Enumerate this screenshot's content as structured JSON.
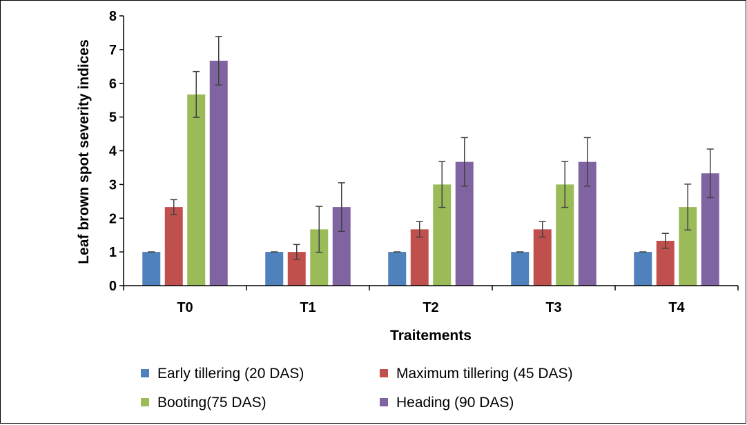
{
  "chart_data": {
    "type": "bar",
    "title": "",
    "xlabel": "Traitements",
    "ylabel": "Leaf brown spot severity indices",
    "ylim": [
      0,
      8
    ],
    "yticks": [
      0,
      1,
      2,
      3,
      4,
      5,
      6,
      7,
      8
    ],
    "categories": [
      "T0",
      "T1",
      "T2",
      "T3",
      "T4"
    ],
    "series": [
      {
        "name": "Early tillering (20 DAS)",
        "color": "#4f81bd",
        "values": [
          1,
          1,
          1,
          1,
          1
        ],
        "errors": [
          0,
          0,
          0,
          0,
          0
        ]
      },
      {
        "name": "Maximum tillering (45 DAS)",
        "color": "#c0504d",
        "values": [
          2.33,
          1,
          1.67,
          1.67,
          1.33
        ],
        "errors": [
          0.22,
          0.22,
          0.23,
          0.23,
          0.22
        ]
      },
      {
        "name": "Booting(75 DAS)",
        "color": "#9bbb59",
        "values": [
          5.67,
          1.67,
          3,
          3,
          2.33
        ],
        "errors": [
          0.68,
          0.68,
          0.68,
          0.68,
          0.68
        ]
      },
      {
        "name": "Heading (90 DAS)",
        "color": "#8064a2",
        "values": [
          6.67,
          2.33,
          3.67,
          3.67,
          3.33
        ],
        "errors": [
          0.72,
          0.72,
          0.72,
          0.72,
          0.72
        ]
      }
    ],
    "grid": false,
    "legend_position": "bottom"
  }
}
